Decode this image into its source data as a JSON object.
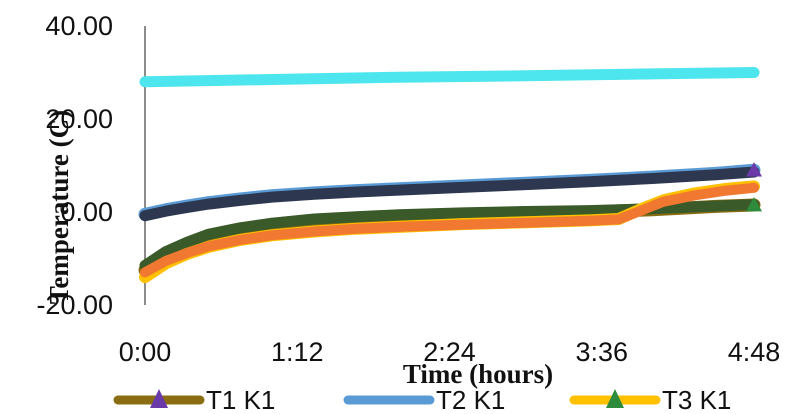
{
  "chart_data": {
    "type": "line",
    "xlabel": "Time (hours)",
    "ylabel": "Temperature (C)",
    "x_ticks": [
      "0:00",
      "1:12",
      "2:24",
      "3:36",
      "4:48"
    ],
    "y_ticks": [
      "-20.00",
      "0.00",
      "20.00",
      "40.00"
    ],
    "xlim": [
      0,
      288
    ],
    "ylim": [
      -20,
      40
    ],
    "x_unit": "minutes",
    "grid": false,
    "legend_position": "bottom",
    "series": [
      {
        "name": "T1 K1",
        "color": "#8a6d10",
        "marker": "triangle",
        "marker_color": "#6a3aa8",
        "x": [
          0,
          10,
          20,
          30,
          45,
          60,
          80,
          100,
          120,
          150,
          180,
          210,
          240,
          270,
          288
        ],
        "y": [
          -12.5,
          -9.5,
          -7.5,
          -5.5,
          -4.0,
          -3.0,
          -2.0,
          -1.5,
          -1.0,
          -0.5,
          -0.2,
          0.0,
          0.5,
          1.2,
          1.5
        ]
      },
      {
        "name": "T2 K1",
        "color": "#5b9bd5",
        "marker": "none",
        "x": [
          0,
          10,
          20,
          30,
          45,
          60,
          80,
          100,
          120,
          150,
          180,
          210,
          240,
          270,
          288
        ],
        "y": [
          -0.5,
          0.5,
          1.3,
          2.0,
          2.8,
          3.5,
          4.1,
          4.6,
          5.0,
          5.6,
          6.2,
          6.8,
          7.5,
          8.3,
          9.0
        ]
      },
      {
        "name": "T3 K1",
        "color": "#ffc000",
        "marker": "triangle",
        "marker_color": "#2e8b3c",
        "x": [
          0,
          10,
          20,
          30,
          45,
          60,
          80,
          100,
          120,
          150,
          180,
          210,
          224,
          234,
          245,
          260,
          275,
          288
        ],
        "y": [
          -14.0,
          -11.0,
          -9.0,
          -7.5,
          -6.0,
          -5.0,
          -4.2,
          -3.6,
          -3.2,
          -2.6,
          -2.2,
          -1.8,
          -1.5,
          0.5,
          2.5,
          4.0,
          5.0,
          5.5
        ]
      }
    ],
    "extra_series_unlabeled": [
      {
        "color": "#4de5ee",
        "x": [
          0,
          60,
          120,
          180,
          240,
          288
        ],
        "y": [
          28.0,
          28.5,
          29.0,
          29.3,
          29.7,
          30.0
        ]
      },
      {
        "color": "#2d3850",
        "x": [
          0,
          10,
          20,
          30,
          45,
          60,
          80,
          100,
          120,
          150,
          180,
          210,
          240,
          270,
          288
        ],
        "y": [
          -0.8,
          0.2,
          1.0,
          1.7,
          2.5,
          3.2,
          3.8,
          4.3,
          4.7,
          5.3,
          5.9,
          6.5,
          7.2,
          8.0,
          8.6
        ]
      },
      {
        "color": "#3a5a2a",
        "x": [
          0,
          10,
          20,
          30,
          45,
          60,
          80,
          100,
          120,
          150,
          180,
          210,
          240,
          270,
          288
        ],
        "y": [
          -11.5,
          -8.5,
          -6.5,
          -4.8,
          -3.4,
          -2.4,
          -1.5,
          -1.0,
          -0.6,
          -0.2,
          0.1,
          0.3,
          0.7,
          1.3,
          1.6
        ]
      },
      {
        "color": "#f07830",
        "x": [
          0,
          10,
          20,
          30,
          45,
          60,
          80,
          100,
          120,
          150,
          180,
          210,
          224,
          234,
          245,
          260,
          275,
          288
        ],
        "y": [
          -13.0,
          -10.5,
          -8.8,
          -7.4,
          -6.0,
          -5.0,
          -4.2,
          -3.6,
          -3.2,
          -2.7,
          -2.3,
          -1.9,
          -1.6,
          0.2,
          2.2,
          3.6,
          4.6,
          5.2
        ]
      }
    ]
  }
}
